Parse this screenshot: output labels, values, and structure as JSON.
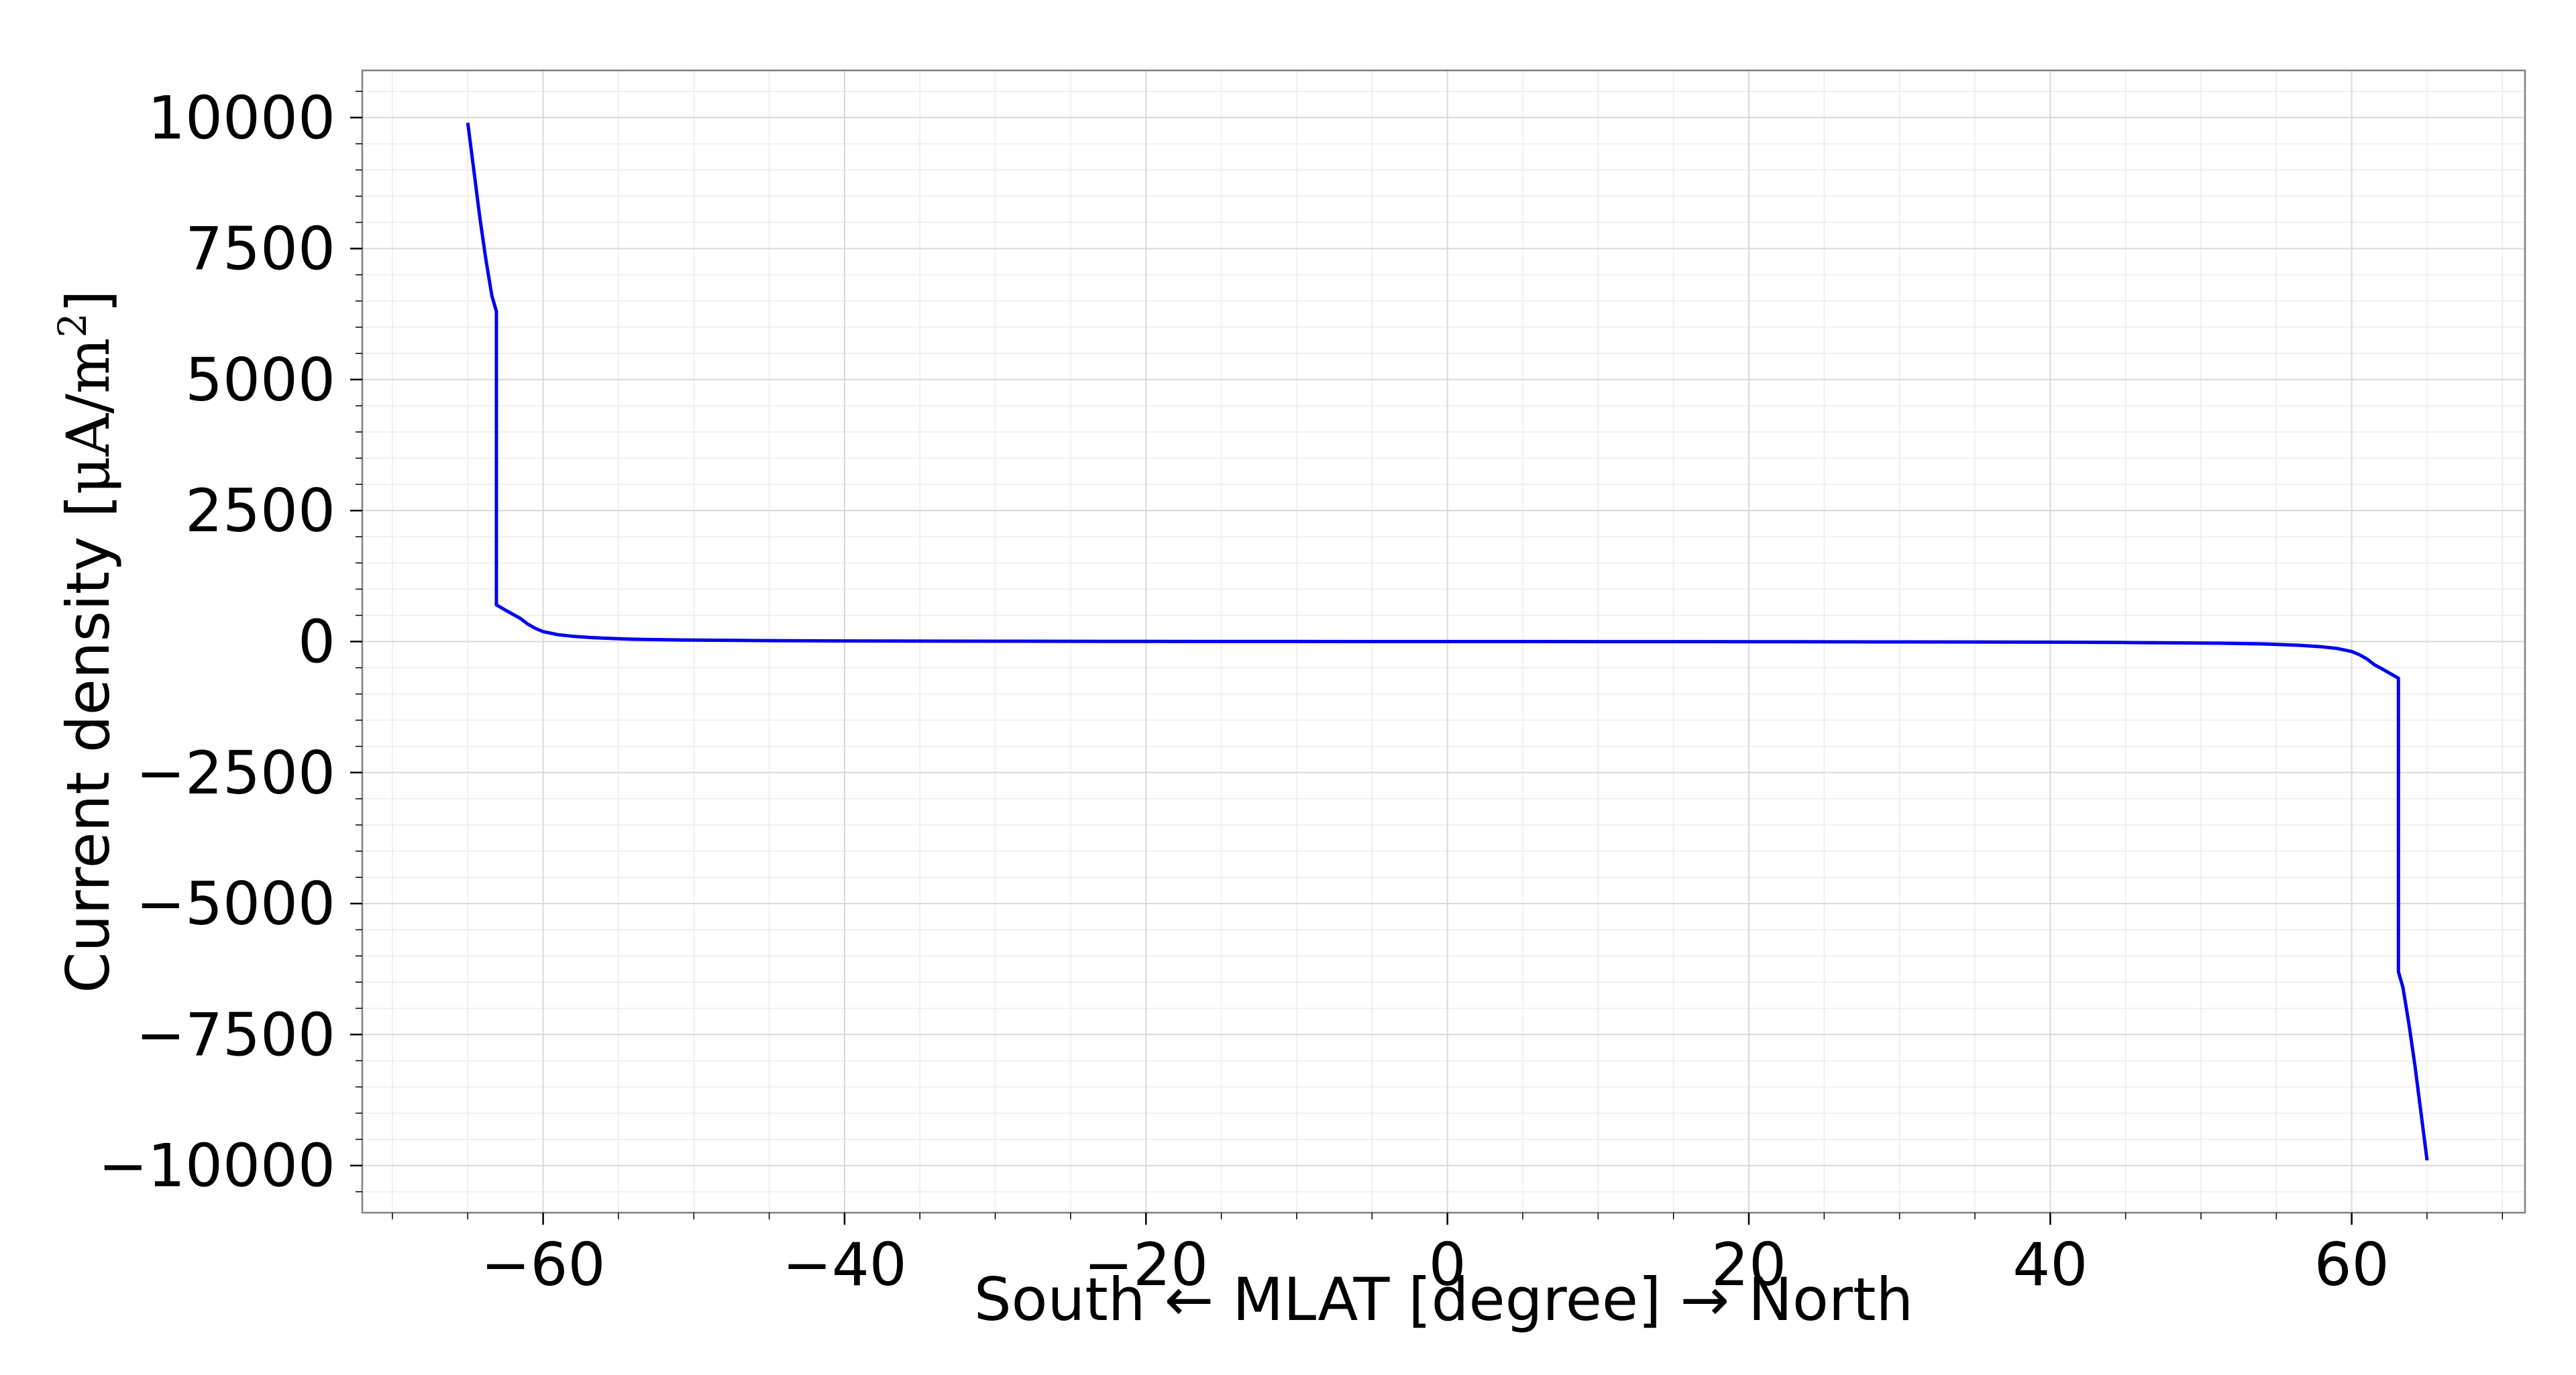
{
  "chart_data": {
    "type": "line",
    "title": "",
    "xlabel": "South ← MLAT [degree] → North",
    "ylabel_main": "Current density [",
    "ylabel_unit_base": "μA/m",
    "ylabel_unit_sup": "2",
    "ylabel_close": "]",
    "xlim": [
      -72,
      71.5
    ],
    "ylim": [
      -10900,
      10900
    ],
    "x_ticks": [
      -60,
      -40,
      -20,
      0,
      20,
      40,
      60
    ],
    "x_tick_labels": [
      "−60",
      "−40",
      "−20",
      "0",
      "20",
      "40",
      "60"
    ],
    "y_ticks": [
      10000,
      7500,
      5000,
      2500,
      0,
      -2500,
      -5000,
      -7500,
      -10000
    ],
    "y_tick_labels": [
      "10000",
      "7500",
      "5000",
      "2500",
      "0",
      "−2500",
      "−5000",
      "−7500",
      "−10000"
    ],
    "grid": true,
    "line_color": "#0000ee",
    "series": [
      {
        "x": [
          -65,
          -64.6,
          -64.2,
          -63.8,
          -63.4,
          -63.1,
          -63.1,
          -62.5,
          -62,
          -61.5,
          -61,
          -60.5,
          -60,
          -59,
          -58,
          -57,
          -56,
          -55,
          -54,
          -52,
          -50,
          -45,
          -40,
          -30,
          -20,
          -10,
          0,
          10,
          20,
          30,
          40,
          45,
          50,
          52,
          54,
          55,
          56,
          57,
          58,
          59,
          60,
          60.5,
          61,
          61.5,
          62,
          62.5,
          63.1,
          63.1,
          63.4,
          63.8,
          64.2,
          64.6,
          65
        ],
        "y": [
          9900,
          9000,
          8100,
          7300,
          6600,
          6300,
          700,
          600,
          520,
          440,
          330,
          250,
          190,
          130,
          100,
          80,
          65,
          55,
          45,
          35,
          28,
          18,
          12,
          6,
          3,
          1,
          0,
          -1,
          -3,
          -6,
          -12,
          -18,
          -28,
          -35,
          -45,
          -55,
          -65,
          -80,
          -100,
          -130,
          -190,
          -250,
          -330,
          -440,
          -520,
          -600,
          -700,
          -6300,
          -6600,
          -7300,
          -8100,
          -9000,
          -9900
        ]
      }
    ]
  }
}
